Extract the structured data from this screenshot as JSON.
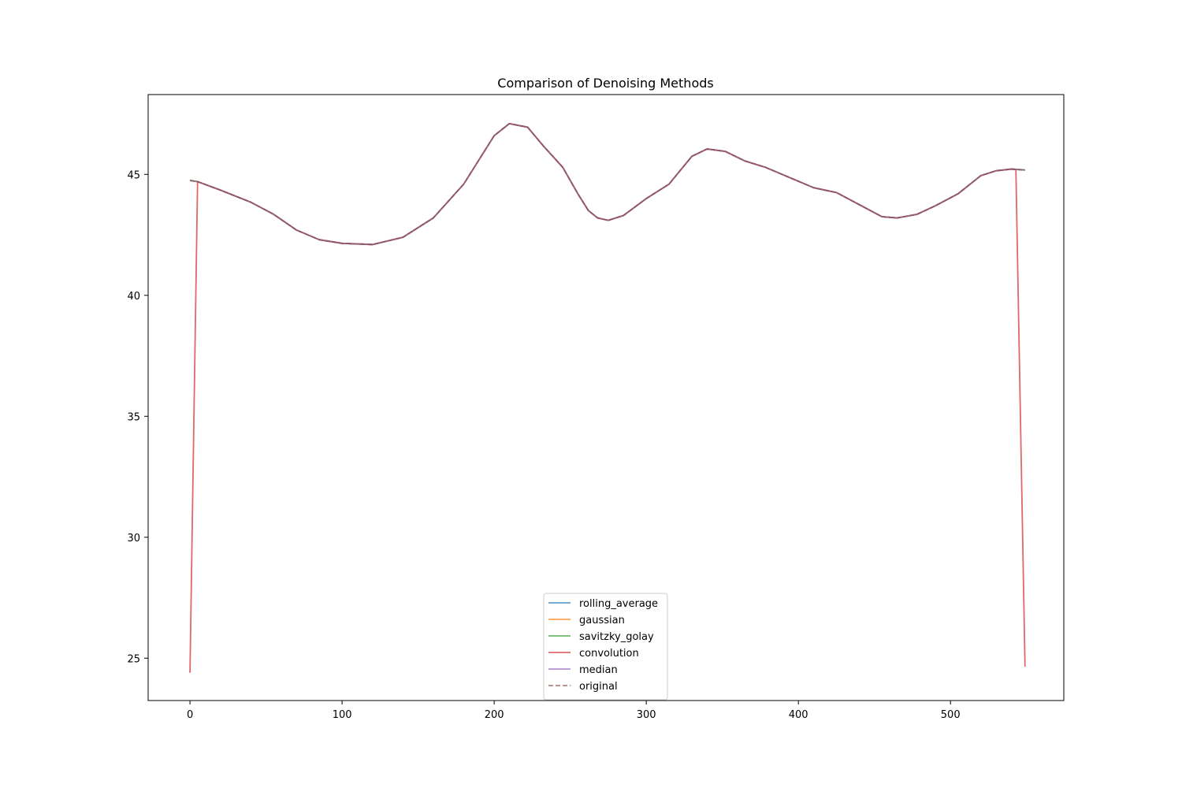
{
  "chart_data": {
    "type": "line",
    "title": "Comparison of Denoising Methods",
    "xlabel": "",
    "ylabel": "",
    "xlim": [
      -27.5,
      574.5
    ],
    "ylim": [
      23.25,
      48.3
    ],
    "xticks": [
      0,
      100,
      200,
      300,
      400,
      500
    ],
    "yticks": [
      25,
      30,
      35,
      40,
      45
    ],
    "grid": false,
    "legend_position": "lower center",
    "base_curve": {
      "x": [
        0,
        5,
        20,
        40,
        55,
        70,
        85,
        100,
        120,
        140,
        160,
        180,
        200,
        210,
        222,
        232,
        245,
        255,
        262,
        268,
        275,
        285,
        300,
        315,
        330,
        340,
        352,
        365,
        378,
        395,
        410,
        425,
        440,
        455,
        465,
        478,
        490,
        505,
        520,
        530,
        540,
        549
      ],
      "y": [
        44.75,
        44.7,
        44.35,
        43.85,
        43.35,
        42.7,
        42.3,
        42.15,
        42.1,
        42.4,
        43.2,
        44.6,
        46.6,
        47.1,
        46.95,
        46.2,
        45.3,
        44.2,
        43.5,
        43.2,
        43.1,
        43.3,
        44.0,
        44.6,
        45.75,
        46.05,
        45.95,
        45.55,
        45.3,
        44.85,
        44.45,
        44.25,
        43.75,
        43.25,
        43.2,
        43.35,
        43.7,
        44.2,
        44.95,
        45.15,
        45.22,
        45.18
      ]
    },
    "series": [
      {
        "name": "rolling_average",
        "color": "#1f77b4",
        "dashed": false,
        "x_start": 0,
        "x_end": 549
      },
      {
        "name": "gaussian",
        "color": "#ff7f0e",
        "dashed": false,
        "x_start": 0,
        "x_end": 549
      },
      {
        "name": "savitzky_golay",
        "color": "#2ca02c",
        "dashed": false,
        "x_start": 0,
        "x_end": 549
      },
      {
        "name": "convolution",
        "color": "#d62728",
        "dashed": false,
        "x_start": 5,
        "x_end": 543,
        "edge_points": {
          "start": [
            0,
            24.4
          ],
          "end": [
            549,
            24.65
          ]
        }
      },
      {
        "name": "median",
        "color": "#9467bd",
        "dashed": false,
        "x_start": 0,
        "x_end": 549
      },
      {
        "name": "original",
        "color": "#8c564b",
        "dashed": true,
        "x_start": 0,
        "x_end": 549
      }
    ]
  }
}
